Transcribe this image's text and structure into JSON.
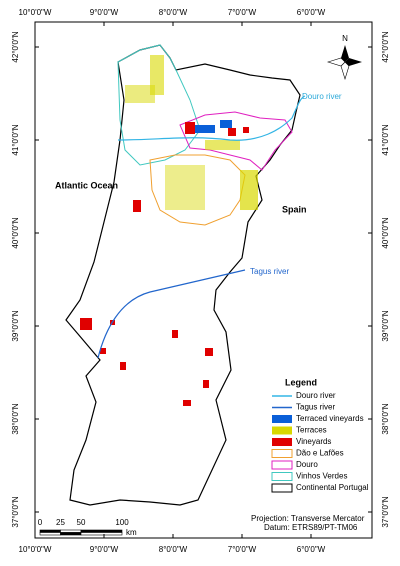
{
  "map": {
    "longitude_labels": [
      {
        "value": -10,
        "label": "10°0'0\"W"
      },
      {
        "value": -9,
        "label": "9°0'0\"W"
      },
      {
        "value": -8,
        "label": "8°0'0\"W"
      },
      {
        "value": -7,
        "label": "7°0'0\"W"
      },
      {
        "value": -6,
        "label": "6°0'0\"W"
      }
    ],
    "latitude_labels": [
      {
        "value": 42,
        "label": "42°0'0\"N"
      },
      {
        "value": 41,
        "label": "41°0'0\"N"
      },
      {
        "value": 40,
        "label": "40°0'0\"N"
      },
      {
        "value": 39,
        "label": "39°0'0\"N"
      },
      {
        "value": 38,
        "label": "38°0'0\"N"
      },
      {
        "value": 37,
        "label": "37°0'0\"N"
      }
    ],
    "annotations": {
      "ocean": "Atlantic Ocean",
      "country": "Spain",
      "douro": "Douro river",
      "tagus": "Tagus river"
    },
    "north_arrow": "N",
    "legend": {
      "title": "Legend",
      "items": [
        {
          "label": "Douro river",
          "color": "#33b5e5",
          "kind": "line"
        },
        {
          "label": "Tagus river",
          "color": "#2266cc",
          "kind": "line"
        },
        {
          "label": "Terraced vineyards",
          "color": "#0a5fd8",
          "kind": "fill"
        },
        {
          "label": "Terraces",
          "color": "#d8d800",
          "kind": "fill"
        },
        {
          "label": "Vineyards",
          "color": "#e00000",
          "kind": "fill"
        },
        {
          "label": "Dão e Lafões",
          "color": "#f0a030",
          "kind": "outline"
        },
        {
          "label": "Douro",
          "color": "#e020c0",
          "kind": "outline"
        },
        {
          "label": "Vinhos Verdes",
          "color": "#40c8c0",
          "kind": "outline"
        },
        {
          "label": "Continental Portugal",
          "color": "#000000",
          "kind": "outline"
        }
      ]
    },
    "scale_bar": {
      "ticks": [
        0,
        25,
        50,
        100
      ],
      "unit": "km"
    },
    "projection": "Projection: Transverse Mercator",
    "datum": "Datum: ETRS89/PT-TM06"
  }
}
